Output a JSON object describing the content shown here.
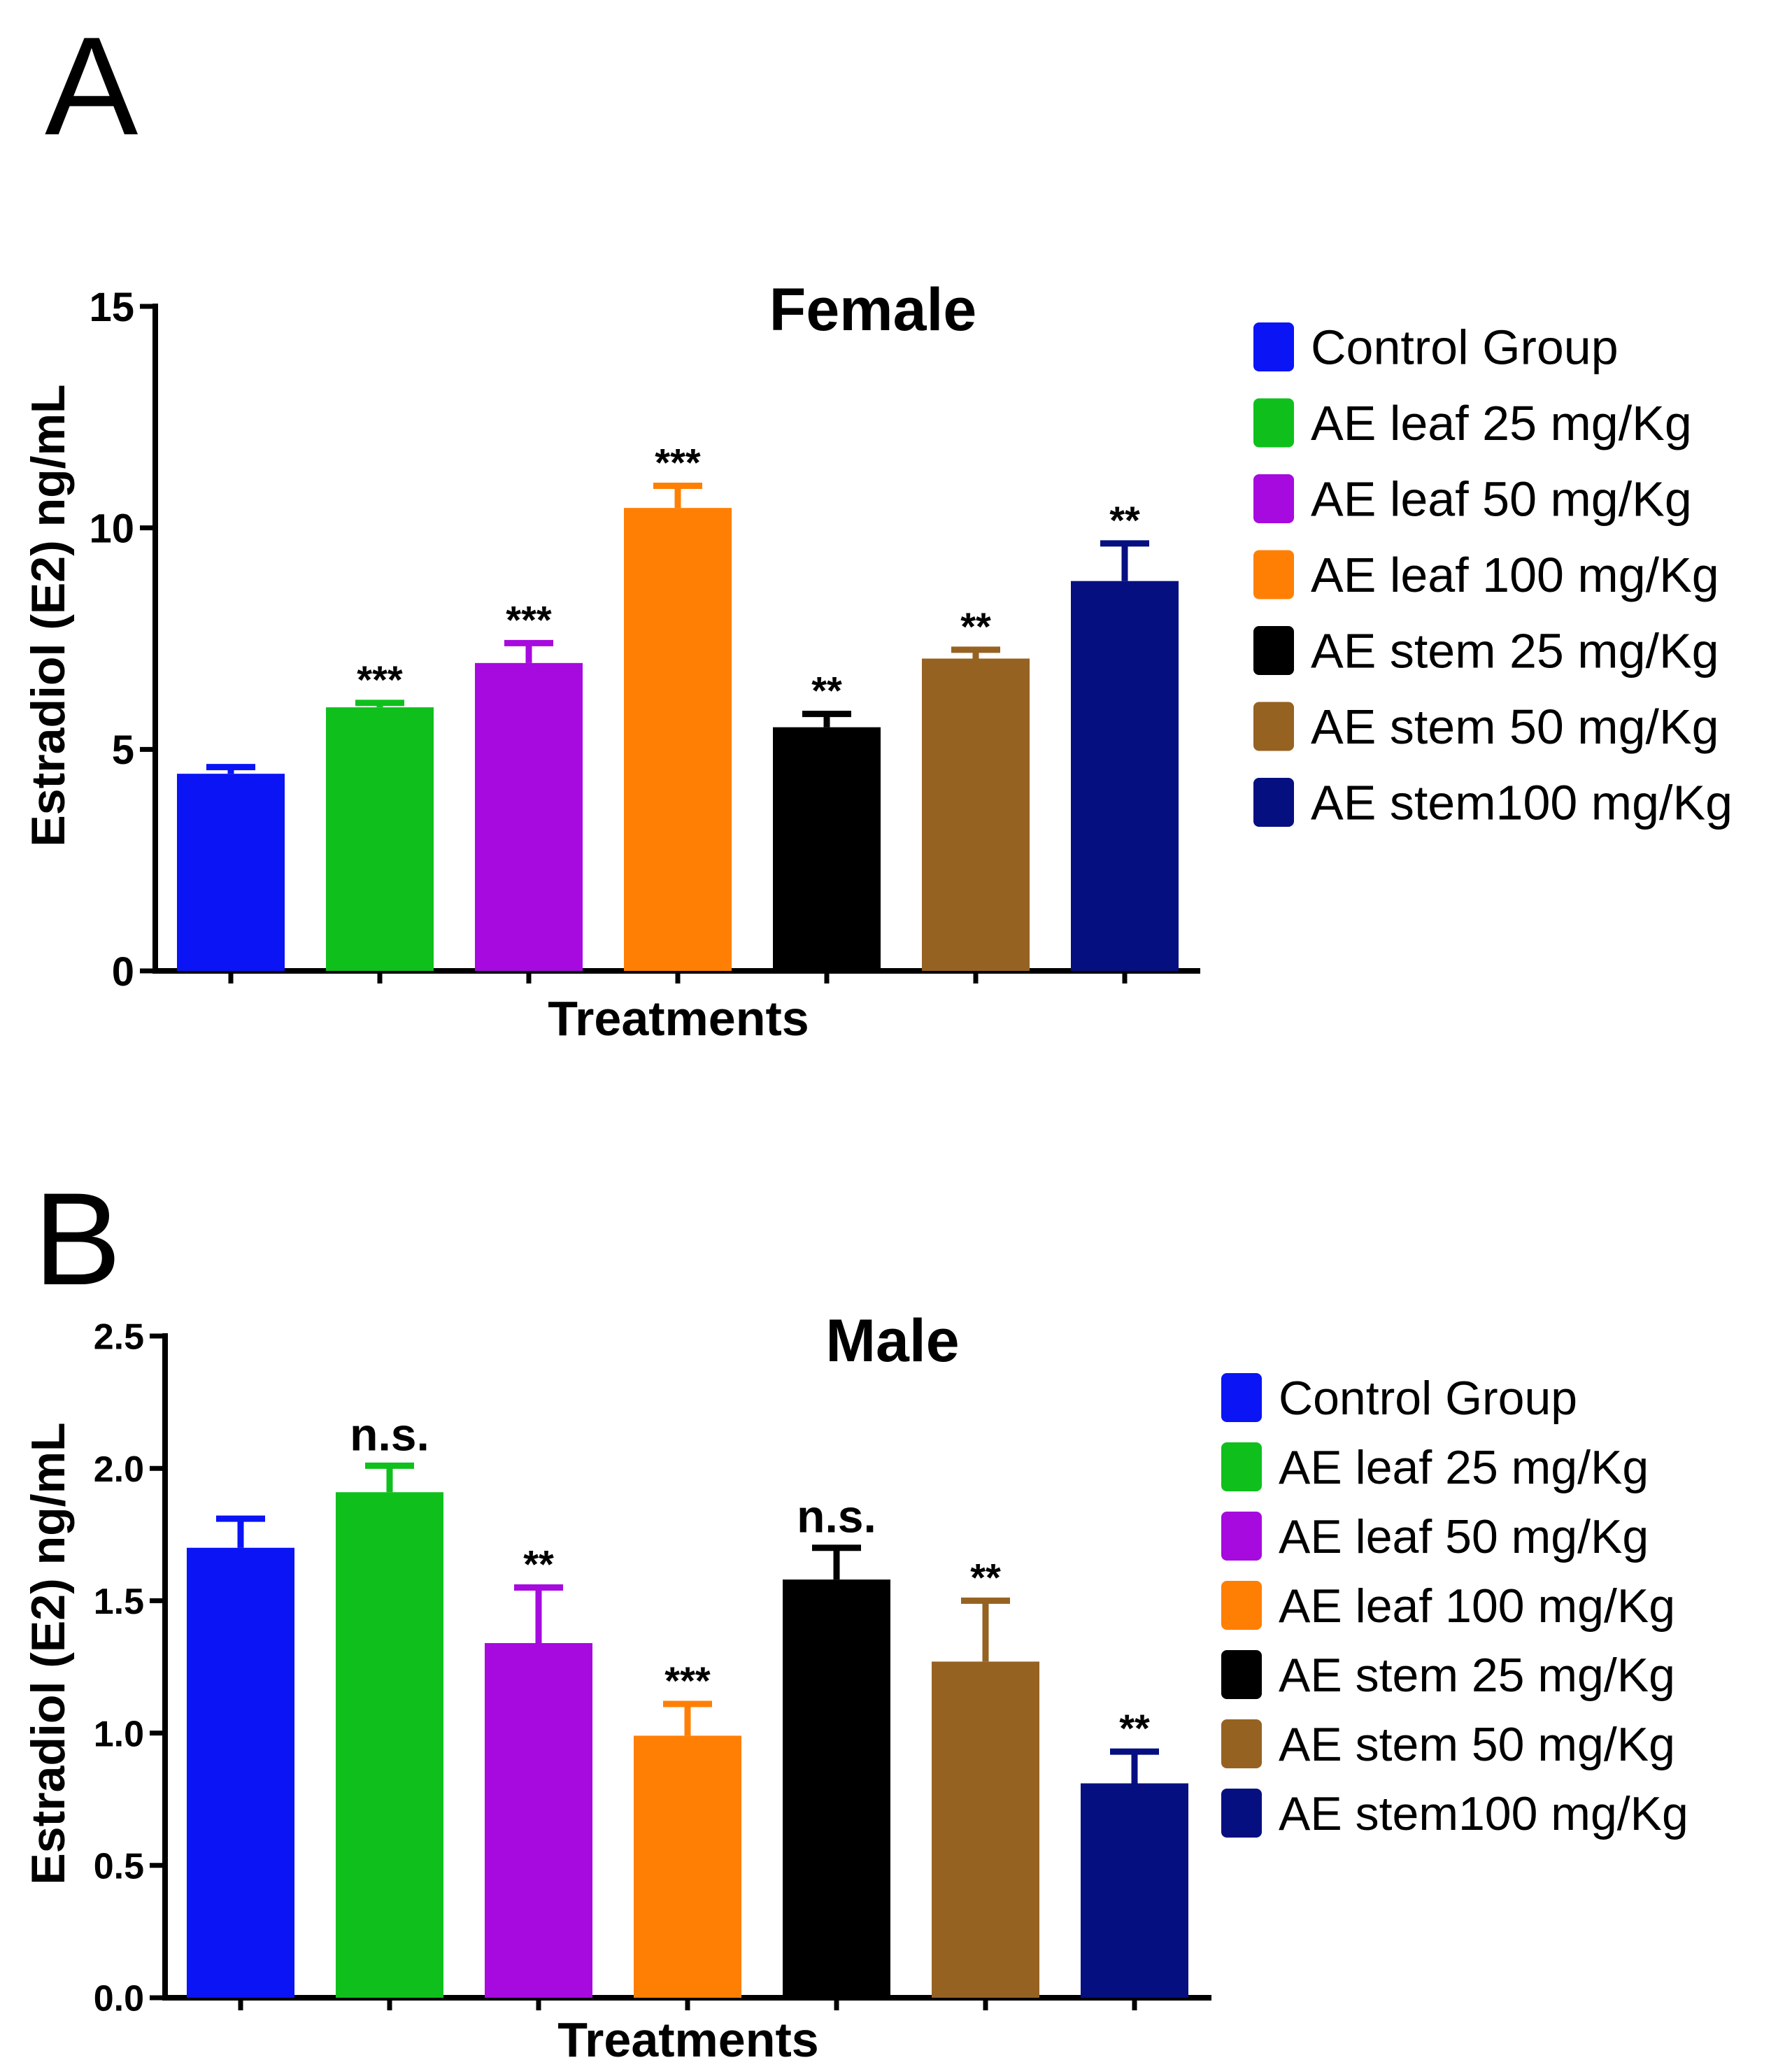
{
  "panels": [
    {
      "letter": "A"
    },
    {
      "letter": "B"
    }
  ],
  "chart_data": [
    {
      "type": "bar",
      "title": "Female",
      "xlabel": "Treatments",
      "ylabel": "Estradiol (E2) ng/mL",
      "ylim": [
        0,
        15
      ],
      "ytick_values": [
        0,
        5,
        10,
        15
      ],
      "ytick_labels": [
        "0",
        "5",
        "10",
        "15"
      ],
      "categories": [
        "Control Group",
        "AE leaf 25 mg/Kg",
        "AE leaf 50 mg/Kg",
        "AE leaf 100 mg/Kg",
        "AE stem 25 mg/Kg",
        "AE stem 50 mg/Kg",
        "AE stem100 mg/Kg"
      ],
      "values": [
        4.45,
        5.95,
        6.95,
        10.45,
        5.5,
        7.05,
        8.8
      ],
      "errors": [
        0.15,
        0.1,
        0.45,
        0.5,
        0.3,
        0.2,
        0.85
      ],
      "annotations": [
        "",
        "***",
        "***",
        "***",
        "**",
        "**",
        "**"
      ],
      "colors": [
        "#0a14f4",
        "#0fc01c",
        "#a60ade",
        "#ff7f05",
        "#000000",
        "#966222",
        "#050f80"
      ],
      "legend": [
        "Control Group",
        "AE leaf 25 mg/Kg",
        "AE leaf 50 mg/Kg",
        "AE leaf 100 mg/Kg",
        "AE stem 25 mg/Kg",
        "AE stem 50 mg/Kg",
        "AE stem100 mg/Kg"
      ],
      "legend_position": "right"
    },
    {
      "type": "bar",
      "title": "Male",
      "xlabel": "Treatments",
      "ylabel": "Estradiol (E2) ng/mL",
      "ylim": [
        0,
        2.5
      ],
      "ytick_values": [
        0,
        0.5,
        1,
        1.5,
        2,
        2.5
      ],
      "ytick_labels": [
        "0.0",
        "0.5",
        "1.0",
        "1.5",
        "2.0",
        "2.5"
      ],
      "categories": [
        "Control Group",
        "AE leaf 25 mg/Kg",
        "AE leaf 50 mg/Kg",
        "AE leaf 100 mg/Kg",
        "AE stem 25 mg/Kg",
        "AE stem 50 mg/Kg",
        "AE stem100 mg/Kg"
      ],
      "values": [
        1.7,
        1.91,
        1.34,
        0.99,
        1.58,
        1.27,
        0.81
      ],
      "errors": [
        0.11,
        0.1,
        0.21,
        0.12,
        0.12,
        0.23,
        0.12
      ],
      "annotations": [
        "",
        "n.s.",
        "**",
        "***",
        "n.s.",
        "**",
        "**"
      ],
      "colors": [
        "#0a14f4",
        "#0fc01c",
        "#a60ade",
        "#ff7f05",
        "#000000",
        "#966222",
        "#050f80"
      ],
      "legend": [
        "Control Group",
        "AE leaf 25 mg/Kg",
        "AE leaf 50 mg/Kg",
        "AE leaf 100 mg/Kg",
        "AE stem 25 mg/Kg",
        "AE stem 50 mg/Kg",
        "AE stem100 mg/Kg"
      ],
      "legend_position": "right"
    }
  ]
}
